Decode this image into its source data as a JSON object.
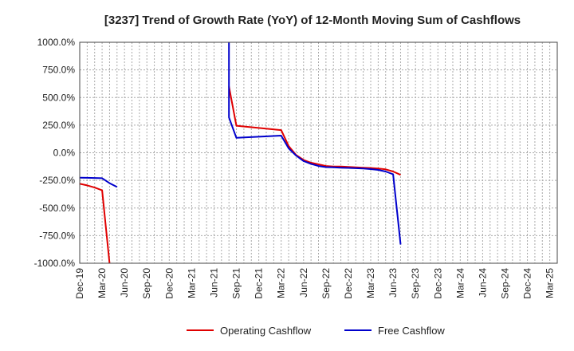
{
  "chart_data": {
    "type": "line",
    "title": "[3237]  Trend of Growth Rate (YoY) of 12-Month Moving Sum of Cashflows",
    "xlabel": "",
    "ylabel": "",
    "ylim": [
      -1000,
      1000
    ],
    "y_ticks": [
      "1000.0%",
      "750.0%",
      "500.0%",
      "250.0%",
      "0.0%",
      "-250.0%",
      "-500.0%",
      "-750.0%",
      "-1000.0%"
    ],
    "x_ticks": [
      "Dec-19",
      "Mar-20",
      "Jun-20",
      "Sep-20",
      "Dec-20",
      "Mar-21",
      "Jun-21",
      "Sep-21",
      "Dec-21",
      "Mar-22",
      "Jun-22",
      "Sep-22",
      "Dec-22",
      "Mar-23",
      "Jun-23",
      "Sep-23",
      "Dec-23",
      "Mar-24",
      "Jun-24",
      "Sep-24",
      "Dec-24",
      "Mar-25"
    ],
    "grid": true,
    "legend_position": "bottom",
    "series": [
      {
        "name": "Operating Cashflow",
        "color": "#e00000",
        "segments": [
          [
            [
              "2019-12",
              -280
            ],
            [
              "2020-01",
              -295
            ],
            [
              "2020-02",
              -315
            ],
            [
              "2020-03",
              -340
            ],
            [
              "2020-04",
              -1000
            ]
          ],
          [
            [
              "2021-08",
              600
            ],
            [
              "2021-09",
              245
            ],
            [
              "2022-03",
              205
            ],
            [
              "2022-04",
              60
            ],
            [
              "2022-05",
              -20
            ],
            [
              "2022-06",
              -65
            ],
            [
              "2022-07",
              -90
            ],
            [
              "2022-08",
              -105
            ],
            [
              "2022-09",
              -120
            ],
            [
              "2022-10",
              -125
            ],
            [
              "2022-11",
              -125
            ],
            [
              "2022-12",
              -128
            ],
            [
              "2023-01",
              -132
            ],
            [
              "2023-02",
              -135
            ],
            [
              "2023-03",
              -138
            ],
            [
              "2023-04",
              -142
            ],
            [
              "2023-05",
              -150
            ],
            [
              "2023-06",
              -170
            ],
            [
              "2023-07",
              -200
            ]
          ]
        ]
      },
      {
        "name": "Free Cashflow",
        "color": "#0000cc",
        "segments": [
          [
            [
              "2019-12",
              -225
            ],
            [
              "2020-01",
              -227
            ],
            [
              "2020-02",
              -228
            ],
            [
              "2020-03",
              -230
            ],
            [
              "2020-04",
              -275
            ],
            [
              "2020-05",
              -310
            ]
          ],
          [
            [
              "2021-08",
              1000
            ],
            [
              "2021-08",
              320
            ],
            [
              "2021-09",
              135
            ],
            [
              "2022-03",
              155
            ],
            [
              "2022-04",
              40
            ],
            [
              "2022-05",
              -25
            ],
            [
              "2022-06",
              -75
            ],
            [
              "2022-07",
              -100
            ],
            [
              "2022-08",
              -120
            ],
            [
              "2022-09",
              -130
            ],
            [
              "2022-10",
              -132
            ],
            [
              "2022-11",
              -135
            ],
            [
              "2022-12",
              -137
            ],
            [
              "2023-01",
              -140
            ],
            [
              "2023-02",
              -143
            ],
            [
              "2023-03",
              -148
            ],
            [
              "2023-04",
              -155
            ],
            [
              "2023-05",
              -170
            ],
            [
              "2023-06",
              -195
            ],
            [
              "2023-07",
              -830
            ]
          ]
        ]
      }
    ]
  }
}
